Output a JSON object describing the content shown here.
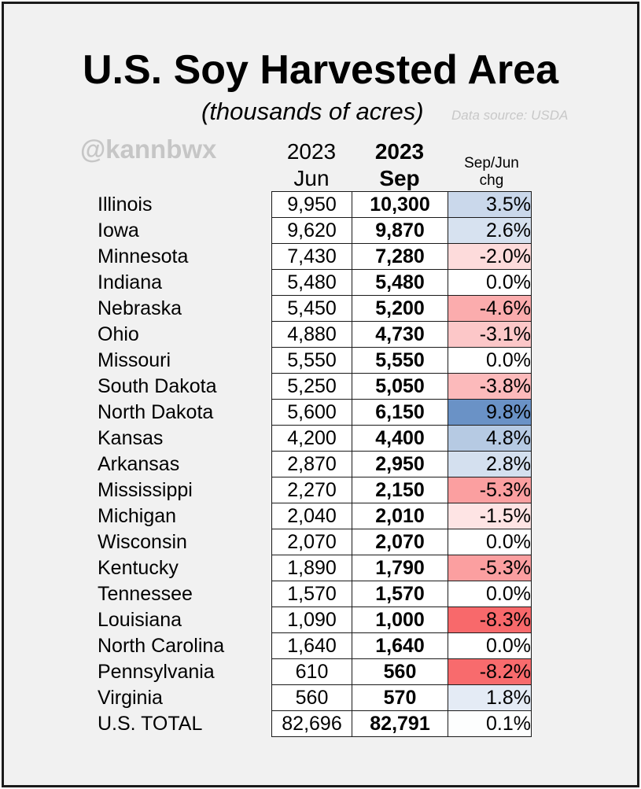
{
  "title": "U.S. Soy Harvested Area",
  "subtitle": "(thousands of acres)",
  "source": "Data source: USDA",
  "handle": "@kannbwx",
  "headers": {
    "jun_year": "2023",
    "jun_month": "Jun",
    "sep_year": "2023",
    "sep_month": "Sep",
    "chg_line1": "Sep/Jun",
    "chg_line2": "chg"
  },
  "colors": {
    "background": "#f1f1f1",
    "positive": "#6a92c6",
    "negative": "#f8696b",
    "neutral": "#ffffff"
  },
  "chart_data": {
    "type": "table",
    "columns": [
      "",
      "2023 Jun",
      "2023 Sep",
      "Sep/Jun chg"
    ],
    "rows": [
      {
        "state": "Illinois",
        "jun": "9,950",
        "sep": "10,300",
        "chg": "3.5%",
        "chg_value": 3.5
      },
      {
        "state": "Iowa",
        "jun": "9,620",
        "sep": "9,870",
        "chg": "2.6%",
        "chg_value": 2.6
      },
      {
        "state": "Minnesota",
        "jun": "7,430",
        "sep": "7,280",
        "chg": "-2.0%",
        "chg_value": -2.0
      },
      {
        "state": "Indiana",
        "jun": "5,480",
        "sep": "5,480",
        "chg": "0.0%",
        "chg_value": 0.0
      },
      {
        "state": "Nebraska",
        "jun": "5,450",
        "sep": "5,200",
        "chg": "-4.6%",
        "chg_value": -4.6
      },
      {
        "state": "Ohio",
        "jun": "4,880",
        "sep": "4,730",
        "chg": "-3.1%",
        "chg_value": -3.1
      },
      {
        "state": "Missouri",
        "jun": "5,550",
        "sep": "5,550",
        "chg": "0.0%",
        "chg_value": 0.0
      },
      {
        "state": "South Dakota",
        "jun": "5,250",
        "sep": "5,050",
        "chg": "-3.8%",
        "chg_value": -3.8
      },
      {
        "state": "North Dakota",
        "jun": "5,600",
        "sep": "6,150",
        "chg": "9.8%",
        "chg_value": 9.8
      },
      {
        "state": "Kansas",
        "jun": "4,200",
        "sep": "4,400",
        "chg": "4.8%",
        "chg_value": 4.8
      },
      {
        "state": "Arkansas",
        "jun": "2,870",
        "sep": "2,950",
        "chg": "2.8%",
        "chg_value": 2.8
      },
      {
        "state": "Mississippi",
        "jun": "2,270",
        "sep": "2,150",
        "chg": "-5.3%",
        "chg_value": -5.3
      },
      {
        "state": "Michigan",
        "jun": "2,040",
        "sep": "2,010",
        "chg": "-1.5%",
        "chg_value": -1.5
      },
      {
        "state": "Wisconsin",
        "jun": "2,070",
        "sep": "2,070",
        "chg": "0.0%",
        "chg_value": 0.0
      },
      {
        "state": "Kentucky",
        "jun": "1,890",
        "sep": "1,790",
        "chg": "-5.3%",
        "chg_value": -5.3
      },
      {
        "state": "Tennessee",
        "jun": "1,570",
        "sep": "1,570",
        "chg": "0.0%",
        "chg_value": 0.0
      },
      {
        "state": "Louisiana",
        "jun": "1,090",
        "sep": "1,000",
        "chg": "-8.3%",
        "chg_value": -8.3
      },
      {
        "state": "North Carolina",
        "jun": "1,640",
        "sep": "1,640",
        "chg": "0.0%",
        "chg_value": 0.0
      },
      {
        "state": "Pennsylvania",
        "jun": "610",
        "sep": "560",
        "chg": "-8.2%",
        "chg_value": -8.2
      },
      {
        "state": "Virginia",
        "jun": "560",
        "sep": "570",
        "chg": "1.8%",
        "chg_value": 1.8
      },
      {
        "state": "U.S. TOTAL",
        "jun": "82,696",
        "sep": "82,791",
        "chg": "0.1%",
        "chg_value": 0.1
      }
    ]
  }
}
